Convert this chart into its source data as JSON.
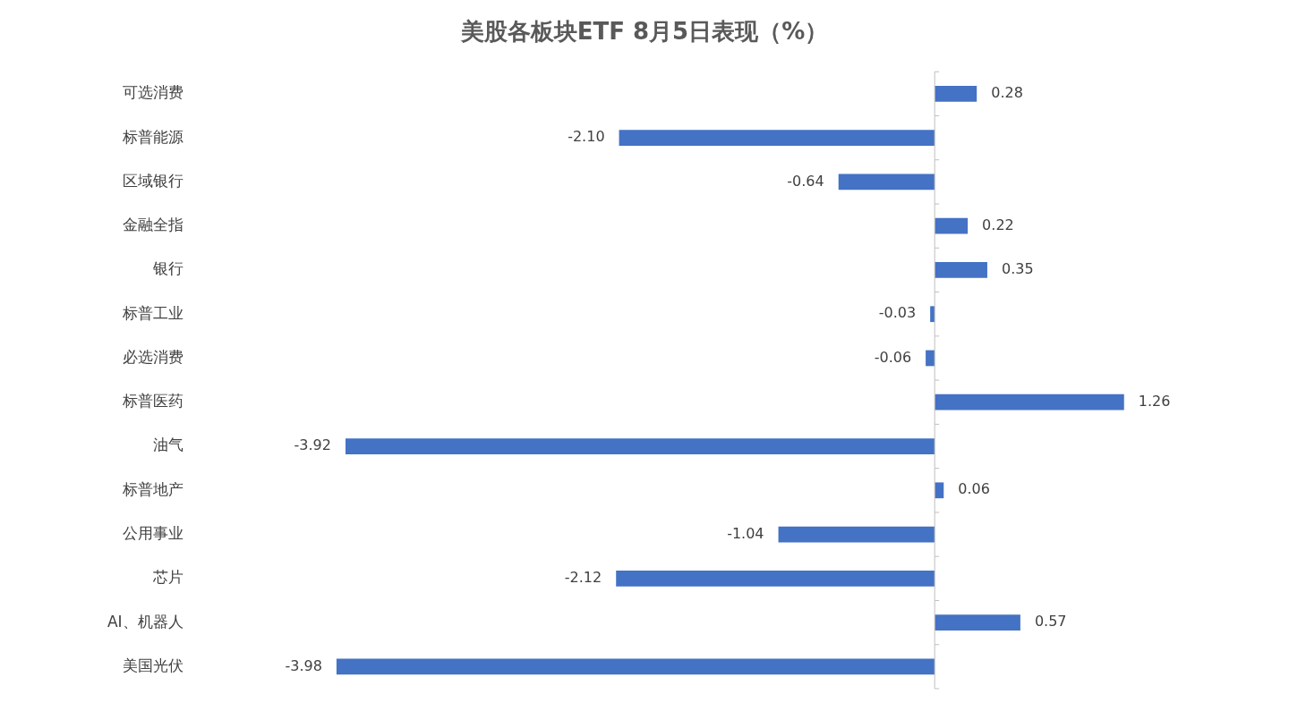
{
  "chart_data": {
    "type": "bar",
    "orientation": "horizontal",
    "title": "美股各板块ETF  8月5日表现（%）",
    "categories": [
      "可选消费",
      "标普能源",
      "区域银行",
      "金融全指",
      "银行",
      "标普工业",
      "必选消费",
      "标普医药",
      "油气",
      "标普地产",
      "公用事业",
      "芯片",
      "AI、机器人",
      "美国光伏"
    ],
    "values": [
      0.28,
      -2.1,
      -0.64,
      0.22,
      0.35,
      -0.03,
      -0.06,
      1.26,
      -3.92,
      0.06,
      -1.04,
      -2.12,
      0.57,
      -3.98
    ],
    "value_labels": [
      "0.28",
      "-2.10",
      "-0.64",
      "0.22",
      "0.35",
      "-0.03",
      "-0.06",
      "1.26",
      "-3.92",
      "0.06",
      "-1.04",
      "-2.12",
      "0.57",
      "-3.98"
    ],
    "color": "#4472c4",
    "grid": false,
    "legend": false,
    "tick_labels": "y"
  }
}
